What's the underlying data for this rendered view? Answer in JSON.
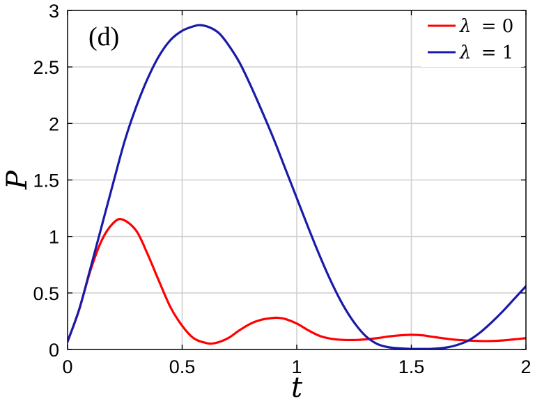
{
  "chart_data": {
    "type": "line",
    "panel_label": "(d)",
    "xlabel": "t",
    "ylabel": "P",
    "xlim": [
      0,
      2
    ],
    "ylim": [
      0,
      3
    ],
    "xticks": [
      0,
      0.5,
      1,
      1.5,
      2
    ],
    "xtick_labels": [
      "0",
      "0.5",
      "1",
      "1.5",
      "2"
    ],
    "yticks": [
      0,
      0.5,
      1,
      1.5,
      2,
      2.5,
      3
    ],
    "ytick_labels": [
      "0",
      "0.5",
      "1",
      "1.5",
      "2",
      "2.5",
      "3"
    ],
    "grid": true,
    "legend_position": "top-right",
    "series": [
      {
        "name": "λ = 0",
        "legend_symbol": "λ",
        "legend_value": "= 0",
        "color": "#ff0000",
        "x": [
          0,
          0.05,
          0.1,
          0.15,
          0.2,
          0.24,
          0.3,
          0.35,
          0.4,
          0.45,
          0.5,
          0.55,
          0.6,
          0.64,
          0.7,
          0.75,
          0.8,
          0.85,
          0.9,
          0.92,
          0.95,
          1.0,
          1.05,
          1.1,
          1.15,
          1.2,
          1.27,
          1.35,
          1.4,
          1.45,
          1.5,
          1.55,
          1.6,
          1.7,
          1.8,
          1.85,
          1.9,
          1.95,
          2.0
        ],
        "y": [
          0.07,
          0.35,
          0.7,
          0.97,
          1.12,
          1.15,
          1.05,
          0.84,
          0.6,
          0.37,
          0.21,
          0.1,
          0.06,
          0.055,
          0.1,
          0.17,
          0.23,
          0.265,
          0.28,
          0.28,
          0.27,
          0.23,
          0.17,
          0.12,
          0.095,
          0.085,
          0.085,
          0.1,
          0.115,
          0.125,
          0.13,
          0.125,
          0.11,
          0.085,
          0.075,
          0.075,
          0.08,
          0.09,
          0.1
        ]
      },
      {
        "name": "λ = 1",
        "legend_symbol": "λ",
        "legend_value": "= 1",
        "color": "#1a1aaa",
        "x": [
          0,
          0.05,
          0.1,
          0.15,
          0.2,
          0.25,
          0.3,
          0.35,
          0.4,
          0.45,
          0.5,
          0.55,
          0.58,
          0.62,
          0.66,
          0.7,
          0.75,
          0.8,
          0.85,
          0.9,
          0.95,
          1.0,
          1.05,
          1.1,
          1.15,
          1.2,
          1.25,
          1.3,
          1.35,
          1.4,
          1.45,
          1.5,
          1.55,
          1.58,
          1.62,
          1.66,
          1.7,
          1.75,
          1.8,
          1.85,
          1.9,
          1.95,
          2.0
        ],
        "y": [
          0.07,
          0.35,
          0.72,
          1.1,
          1.48,
          1.85,
          2.15,
          2.4,
          2.6,
          2.74,
          2.82,
          2.86,
          2.87,
          2.85,
          2.8,
          2.7,
          2.54,
          2.33,
          2.1,
          1.86,
          1.6,
          1.34,
          1.08,
          0.83,
          0.6,
          0.4,
          0.24,
          0.12,
          0.05,
          0.02,
          0.01,
          0.005,
          0.005,
          0.005,
          0.01,
          0.02,
          0.04,
          0.08,
          0.15,
          0.24,
          0.34,
          0.45,
          0.56
        ]
      }
    ]
  }
}
